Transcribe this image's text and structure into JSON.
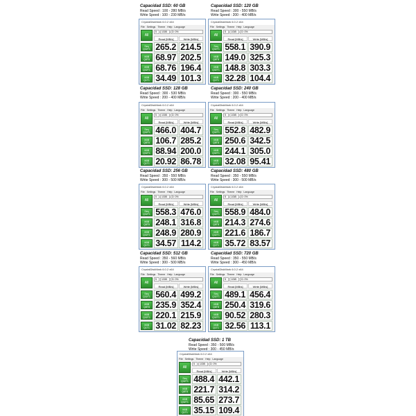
{
  "app": {
    "window_title": "CrystalDiskMark 6.0.2 x64",
    "menu": [
      "File",
      "Settings",
      "Theme",
      "Help",
      "Language"
    ],
    "all_button": "All",
    "count": "5",
    "size": "1GiB",
    "drive": "D: 0%",
    "read_header": "Read [MB/s]",
    "write_header": "Write [MB/s]",
    "row_labels": [
      "Seq Q32T1",
      "4KiB Q8T8",
      "4KiB Q32T1",
      "4KiB Q1T1"
    ]
  },
  "panels": [
    {
      "title": "Capacidad SSD: 60 GB",
      "read_spec": "Read Speed : 100 - 280 MB/s",
      "write_spec": "Write Speed : 100 - 230 MB/s",
      "results": [
        [
          "265.2",
          "214.5"
        ],
        [
          "68.97",
          "202.5"
        ],
        [
          "68.76",
          "196.4"
        ],
        [
          "34.49",
          "101.3"
        ]
      ]
    },
    {
      "title": "Capacidad SSD: 120 GB",
      "read_spec": "Read Speed : 300 - 550 MB/s",
      "write_spec": "Write Speed : 200 - 400 MB/s",
      "results": [
        [
          "558.1",
          "390.9"
        ],
        [
          "149.0",
          "325.3"
        ],
        [
          "148.8",
          "303.3"
        ],
        [
          "32.28",
          "104.4"
        ]
      ]
    },
    {
      "title": "Capacidad SSD: 128 GB",
      "read_spec": "Read Speed : 300 - 530 MB/s",
      "write_spec": "Write Speed : 200 - 400 MB/s",
      "results": [
        [
          "466.0",
          "404.7"
        ],
        [
          "106.7",
          "285.2"
        ],
        [
          "88.94",
          "200.0"
        ],
        [
          "20.92",
          "86.78"
        ]
      ]
    },
    {
      "title": "Capacidad SSD: 240 GB",
      "read_spec": "Read Speed : 300 - 550 MB/s",
      "write_spec": "Write Speed : 200 - 400 MB/s",
      "results": [
        [
          "552.8",
          "482.9"
        ],
        [
          "250.6",
          "342.5"
        ],
        [
          "244.1",
          "305.0"
        ],
        [
          "32.08",
          "95.41"
        ]
      ]
    },
    {
      "title": "Capacidad SSD: 256 GB",
      "read_spec": "Read Speed : 350 - 550 MB/s",
      "write_spec": "Write Speed : 300 - 500 MB/s",
      "results": [
        [
          "558.3",
          "476.0"
        ],
        [
          "248.1",
          "316.8"
        ],
        [
          "248.9",
          "280.9"
        ],
        [
          "34.57",
          "114.2"
        ]
      ]
    },
    {
      "title": "Capacidad SSD: 480 GB",
      "read_spec": "Read Speed : 350 - 550 MB/s",
      "write_spec": "Write Speed : 300 - 500 MB/s",
      "results": [
        [
          "558.9",
          "484.0"
        ],
        [
          "214.3",
          "274.6"
        ],
        [
          "221.6",
          "186.7"
        ],
        [
          "35.72",
          "83.57"
        ]
      ]
    },
    {
      "title": "Capacidad SSD: 512 GB",
      "read_spec": "Read Speed : 350 - 560 MB/s",
      "write_spec": "Write Speed : 300 - 500 MB/s",
      "results": [
        [
          "560.4",
          "499.2"
        ],
        [
          "235.9",
          "352.4"
        ],
        [
          "220.1",
          "215.9"
        ],
        [
          "31.02",
          "82.23"
        ]
      ]
    },
    {
      "title": "Capacidad SSD: 720 GB",
      "read_spec": "Read Speed : 350 - 550 MB/s",
      "write_spec": "Write Speed : 300 - 450 MB/s",
      "results": [
        [
          "489.1",
          "456.4"
        ],
        [
          "250.4",
          "319.6"
        ],
        [
          "90.52",
          "280.3"
        ],
        [
          "32.56",
          "113.1"
        ]
      ]
    },
    {
      "title": "Capacidad SSD: 1 TB",
      "read_spec": "Read Speed : 350 - 500 MB/s",
      "write_spec": "Write Speed : 300 - 450 MB/s",
      "results": [
        [
          "488.4",
          "442.1"
        ],
        [
          "221.7",
          "314.2"
        ],
        [
          "85.65",
          "273.7"
        ],
        [
          "35.15",
          "109.4"
        ]
      ]
    }
  ]
}
